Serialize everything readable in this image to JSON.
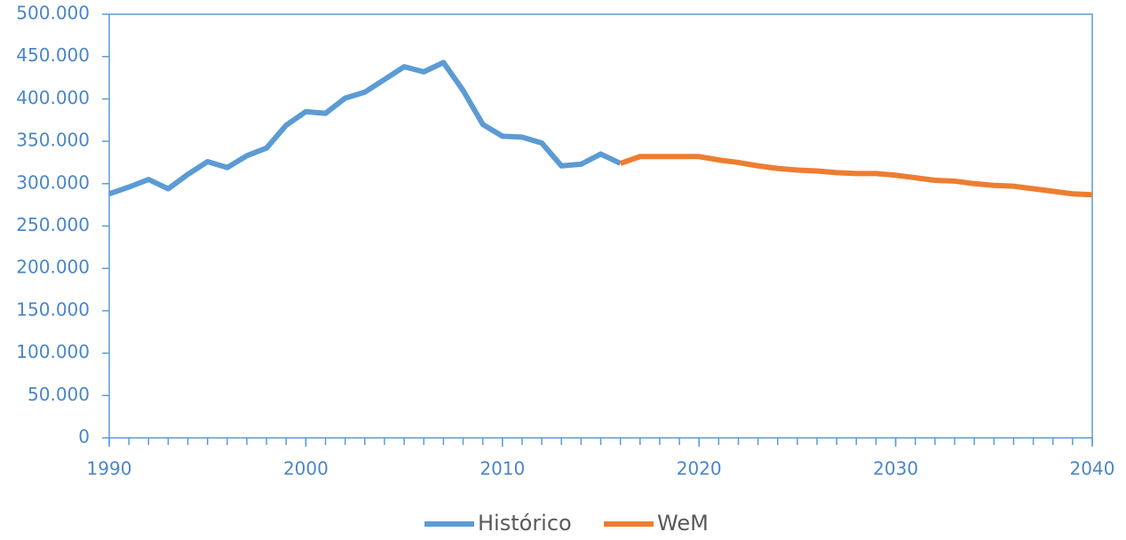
{
  "chart_data": {
    "type": "line",
    "x": [
      1990,
      1991,
      1992,
      1993,
      1994,
      1995,
      1996,
      1997,
      1998,
      1999,
      2000,
      2001,
      2002,
      2003,
      2004,
      2005,
      2006,
      2007,
      2008,
      2009,
      2010,
      2011,
      2012,
      2013,
      2014,
      2015,
      2016,
      2017,
      2018,
      2019,
      2020,
      2021,
      2022,
      2023,
      2024,
      2025,
      2026,
      2027,
      2028,
      2029,
      2030,
      2031,
      2032,
      2033,
      2034,
      2035,
      2036,
      2037,
      2038,
      2039,
      2040
    ],
    "series": [
      {
        "name": "Histórico",
        "color": "#5b9bd5",
        "values": [
          288000,
          296000,
          305000,
          294000,
          311000,
          326000,
          319000,
          333000,
          342000,
          369000,
          385000,
          383000,
          401000,
          408000,
          423000,
          438000,
          432000,
          443000,
          410000,
          370000,
          356000,
          355000,
          348000,
          321000,
          323000,
          335000,
          324000,
          null,
          null,
          null,
          null,
          null,
          null,
          null,
          null,
          null,
          null,
          null,
          null,
          null,
          null,
          null,
          null,
          null,
          null,
          null,
          null,
          null,
          null,
          null,
          null
        ]
      },
      {
        "name": "WeM",
        "color": "#ed7d31",
        "values": [
          null,
          null,
          null,
          null,
          null,
          null,
          null,
          null,
          null,
          null,
          null,
          null,
          null,
          null,
          null,
          null,
          null,
          null,
          null,
          null,
          null,
          null,
          null,
          null,
          null,
          null,
          324000,
          332000,
          332000,
          332000,
          332000,
          328000,
          325000,
          321000,
          318000,
          316000,
          315000,
          313000,
          312000,
          312000,
          310000,
          307000,
          304000,
          303000,
          300000,
          298000,
          297000,
          294000,
          291000,
          288000,
          287000
        ]
      }
    ],
    "xlim": [
      1990,
      2040
    ],
    "xticks": [
      1990,
      2000,
      2010,
      2020,
      2030,
      2040
    ],
    "ylim": [
      0,
      500000
    ],
    "yticks": [
      0,
      {
        "value": 50000,
        "label": "50.000"
      },
      {
        "value": 100000,
        "label": "100.000"
      },
      {
        "value": 150000,
        "label": "150.000"
      },
      {
        "value": 200000,
        "label": "200.000"
      },
      {
        "value": 250000,
        "label": "250.000"
      },
      {
        "value": 300000,
        "label": "300.000"
      },
      {
        "value": 350000,
        "label": "350.000"
      },
      {
        "value": 400000,
        "label": "400.000"
      },
      {
        "value": 450000,
        "label": "450.000"
      },
      {
        "value": 500000,
        "label": "500.000"
      }
    ],
    "legend": "bottom"
  }
}
